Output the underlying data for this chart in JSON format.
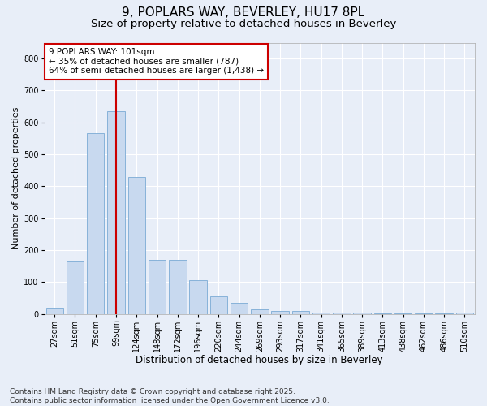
{
  "title1": "9, POPLARS WAY, BEVERLEY, HU17 8PL",
  "title2": "Size of property relative to detached houses in Beverley",
  "xlabel": "Distribution of detached houses by size in Beverley",
  "ylabel": "Number of detached properties",
  "categories": [
    "27sqm",
    "51sqm",
    "75sqm",
    "99sqm",
    "124sqm",
    "148sqm",
    "172sqm",
    "196sqm",
    "220sqm",
    "244sqm",
    "269sqm",
    "293sqm",
    "317sqm",
    "341sqm",
    "365sqm",
    "389sqm",
    "413sqm",
    "438sqm",
    "462sqm",
    "486sqm",
    "510sqm"
  ],
  "values": [
    20,
    165,
    565,
    635,
    430,
    170,
    170,
    105,
    55,
    35,
    15,
    10,
    10,
    5,
    5,
    3,
    2,
    1,
    1,
    1,
    5
  ],
  "bar_color": "#c8d9ef",
  "bar_edge_color": "#7aaad4",
  "vline_x_index": 3,
  "vline_color": "#cc0000",
  "ylim": [
    0,
    850
  ],
  "yticks": [
    0,
    100,
    200,
    300,
    400,
    500,
    600,
    700,
    800
  ],
  "annotation_text": "9 POPLARS WAY: 101sqm\n← 35% of detached houses are smaller (787)\n64% of semi-detached houses are larger (1,438) →",
  "annotation_box_color": "white",
  "annotation_box_edge": "#cc0000",
  "footer": "Contains HM Land Registry data © Crown copyright and database right 2025.\nContains public sector information licensed under the Open Government Licence v3.0.",
  "background_color": "#e8eef8",
  "plot_background": "#e8eef8",
  "grid_color": "white",
  "title1_fontsize": 11,
  "title2_fontsize": 9.5,
  "xlabel_fontsize": 8.5,
  "ylabel_fontsize": 8,
  "tick_fontsize": 7,
  "annotation_fontsize": 7.5,
  "footer_fontsize": 6.5
}
